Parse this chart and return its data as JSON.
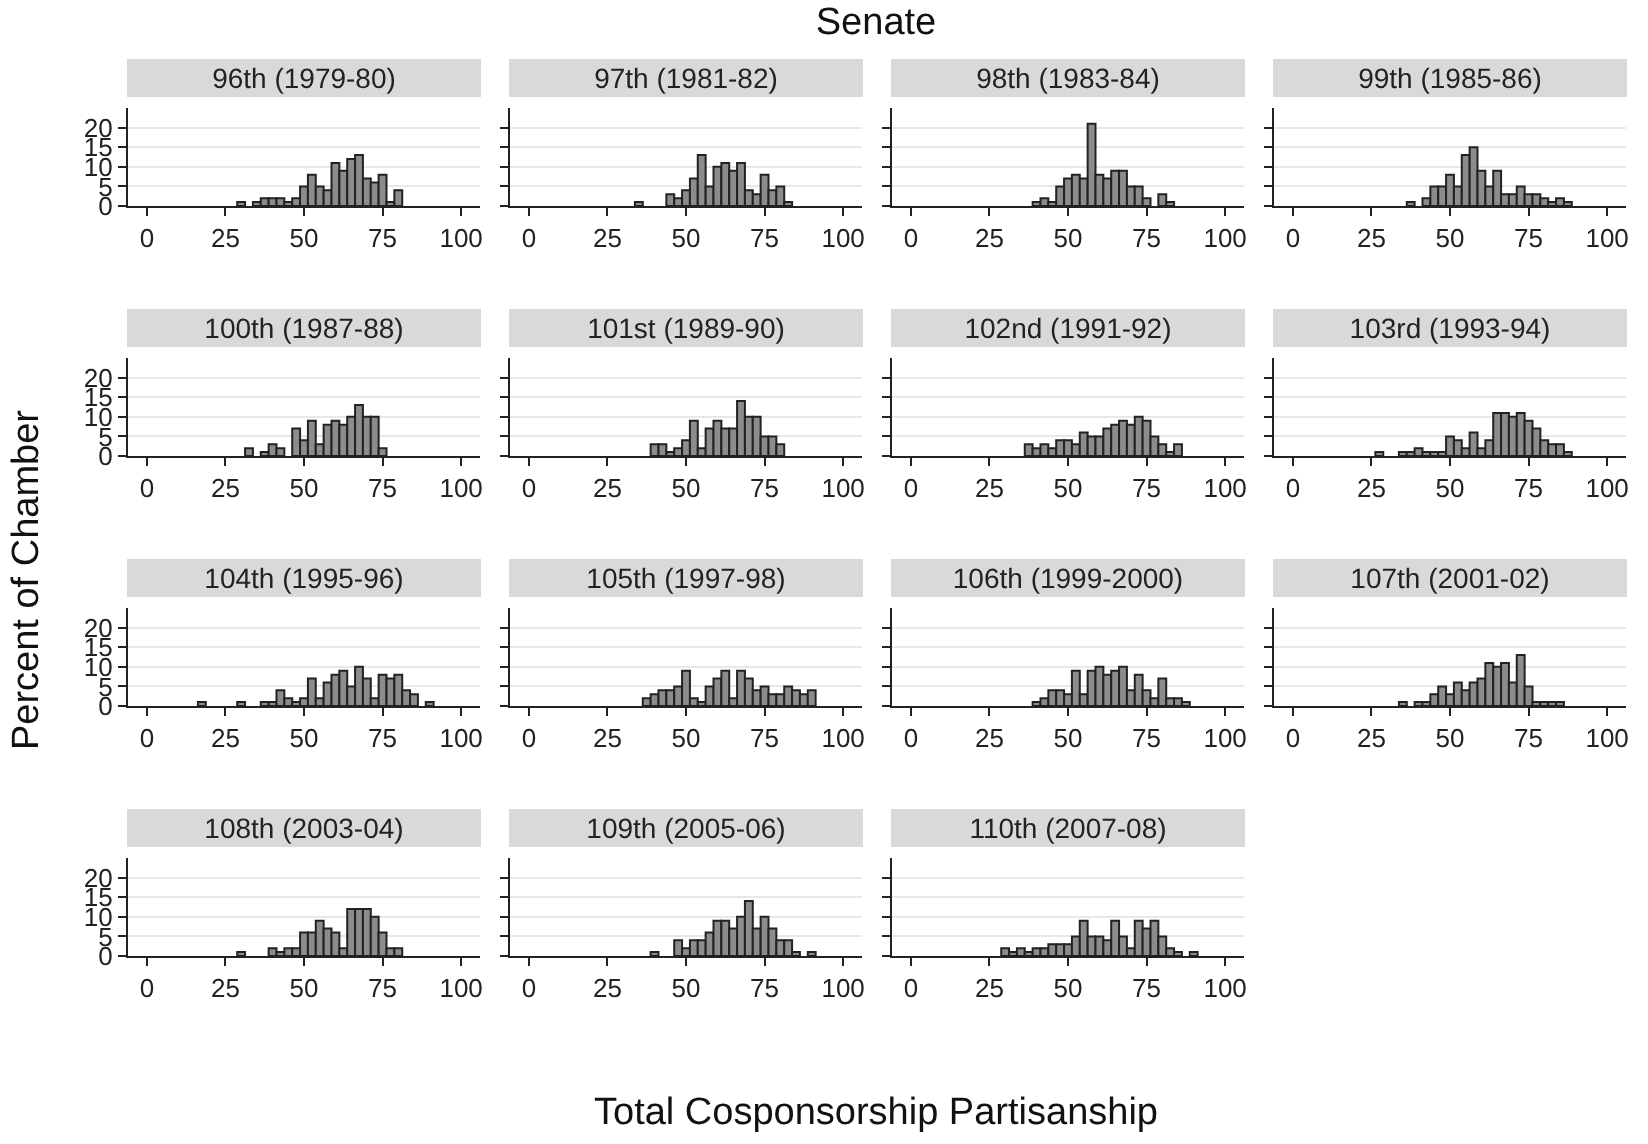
{
  "chart_data": [
    {
      "type": "histogram",
      "title": "96th (1979-80)",
      "bins": [
        16.25,
        18.75,
        21.25,
        23.75,
        26.25,
        28.75,
        31.25,
        33.75,
        36.25,
        38.75,
        41.25,
        43.75,
        46.25,
        48.75,
        51.25,
        53.75,
        56.25,
        58.75,
        61.25,
        63.75,
        66.25,
        68.75,
        71.25,
        73.75,
        76.25,
        78.75,
        81.25,
        83.75,
        86.25,
        88.75,
        91.25
      ],
      "values": [
        0,
        0,
        0,
        0,
        0,
        1,
        0,
        1,
        2,
        2,
        2,
        1,
        2,
        5,
        8,
        5,
        4,
        11,
        9,
        12,
        13,
        7,
        6,
        8,
        1,
        4,
        0,
        0,
        0,
        0
      ],
      "color": "#8c8c8c",
      "xlim": [
        -6,
        106
      ],
      "ylim": [
        0,
        25
      ],
      "xticks": [
        0,
        25,
        50,
        75,
        100
      ],
      "yticks": [
        0,
        5,
        10,
        15,
        20
      ],
      "grid": "y"
    },
    {
      "type": "histogram",
      "title": "97th (1981-82)",
      "bins": [
        16.25,
        18.75,
        21.25,
        23.75,
        26.25,
        28.75,
        31.25,
        33.75,
        36.25,
        38.75,
        41.25,
        43.75,
        46.25,
        48.75,
        51.25,
        53.75,
        56.25,
        58.75,
        61.25,
        63.75,
        66.25,
        68.75,
        71.25,
        73.75,
        76.25,
        78.75,
        81.25,
        83.75,
        86.25,
        88.75,
        91.25
      ],
      "values": [
        0,
        0,
        0,
        0,
        0,
        0,
        0,
        1,
        0,
        0,
        0,
        3,
        2,
        4,
        7,
        13,
        5,
        10,
        11,
        9,
        11,
        4,
        3,
        8,
        4,
        5,
        1,
        0,
        0,
        0
      ],
      "color": "#8c8c8c",
      "xlim": [
        -6,
        106
      ],
      "ylim": [
        0,
        25
      ],
      "xticks": [
        0,
        25,
        50,
        75,
        100
      ],
      "yticks": [
        0,
        5,
        10,
        15,
        20
      ],
      "grid": "y",
      "tick_labels": "x"
    },
    {
      "type": "histogram",
      "title": "98th (1983-84)",
      "bins": [
        16.25,
        18.75,
        21.25,
        23.75,
        26.25,
        28.75,
        31.25,
        33.75,
        36.25,
        38.75,
        41.25,
        43.75,
        46.25,
        48.75,
        51.25,
        53.75,
        56.25,
        58.75,
        61.25,
        63.75,
        66.25,
        68.75,
        71.25,
        73.75,
        76.25,
        78.75,
        81.25,
        83.75,
        86.25,
        88.75,
        91.25
      ],
      "values": [
        0,
        0,
        0,
        0,
        0,
        0,
        0,
        0,
        0,
        1,
        2,
        1,
        5,
        7,
        8,
        7,
        21,
        8,
        7,
        9,
        9,
        5,
        5,
        2,
        0,
        3,
        1,
        0,
        0,
        0
      ],
      "color": "#8c8c8c",
      "xlim": [
        -6,
        106
      ],
      "ylim": [
        0,
        25
      ],
      "xticks": [
        0,
        25,
        50,
        75,
        100
      ],
      "yticks": [
        0,
        5,
        10,
        15,
        20
      ],
      "grid": "y",
      "tick_labels": "x"
    },
    {
      "type": "histogram",
      "title": "99th (1985-86)",
      "bins": [
        16.25,
        18.75,
        21.25,
        23.75,
        26.25,
        28.75,
        31.25,
        33.75,
        36.25,
        38.75,
        41.25,
        43.75,
        46.25,
        48.75,
        51.25,
        53.75,
        56.25,
        58.75,
        61.25,
        63.75,
        66.25,
        68.75,
        71.25,
        73.75,
        76.25,
        78.75,
        81.25,
        83.75,
        86.25,
        88.75,
        91.25
      ],
      "values": [
        0,
        0,
        0,
        0,
        0,
        0,
        0,
        0,
        1,
        0,
        2,
        5,
        5,
        8,
        5,
        13,
        15,
        9,
        5,
        9,
        3,
        3,
        5,
        3,
        3,
        2,
        1,
        2,
        1,
        0
      ],
      "color": "#8c8c8c",
      "xlim": [
        -6,
        106
      ],
      "ylim": [
        0,
        25
      ],
      "xticks": [
        0,
        25,
        50,
        75,
        100
      ],
      "yticks": [
        0,
        5,
        10,
        15,
        20
      ],
      "grid": "y",
      "tick_labels": "x"
    },
    {
      "type": "histogram",
      "title": "100th (1987-88)",
      "bins": [
        16.25,
        18.75,
        21.25,
        23.75,
        26.25,
        28.75,
        31.25,
        33.75,
        36.25,
        38.75,
        41.25,
        43.75,
        46.25,
        48.75,
        51.25,
        53.75,
        56.25,
        58.75,
        61.25,
        63.75,
        66.25,
        68.75,
        71.25,
        73.75,
        76.25,
        78.75,
        81.25,
        83.75,
        86.25,
        88.75,
        91.25
      ],
      "values": [
        0,
        0,
        0,
        0,
        0,
        0,
        2,
        0,
        1,
        3,
        2,
        0,
        7,
        4,
        9,
        3,
        8,
        9,
        8,
        10,
        13,
        10,
        10,
        2,
        0,
        0,
        0,
        0,
        0,
        0
      ],
      "color": "#8c8c8c",
      "xlim": [
        -6,
        106
      ],
      "ylim": [
        0,
        25
      ],
      "xticks": [
        0,
        25,
        50,
        75,
        100
      ],
      "yticks": [
        0,
        5,
        10,
        15,
        20
      ],
      "grid": "y"
    },
    {
      "type": "histogram",
      "title": "101st (1989-90)",
      "bins": [
        16.25,
        18.75,
        21.25,
        23.75,
        26.25,
        28.75,
        31.25,
        33.75,
        36.25,
        38.75,
        41.25,
        43.75,
        46.25,
        48.75,
        51.25,
        53.75,
        56.25,
        58.75,
        61.25,
        63.75,
        66.25,
        68.75,
        71.25,
        73.75,
        76.25,
        78.75,
        81.25,
        83.75,
        86.25,
        88.75,
        91.25
      ],
      "values": [
        0,
        0,
        0,
        0,
        0,
        0,
        0,
        0,
        0,
        3,
        3,
        1,
        2,
        4,
        9,
        2,
        7,
        9,
        7,
        7,
        14,
        10,
        10,
        5,
        5,
        3,
        0,
        0,
        0,
        0
      ],
      "color": "#8c8c8c",
      "xlim": [
        -6,
        106
      ],
      "ylim": [
        0,
        25
      ],
      "xticks": [
        0,
        25,
        50,
        75,
        100
      ],
      "yticks": [
        0,
        5,
        10,
        15,
        20
      ],
      "grid": "y",
      "tick_labels": "x"
    },
    {
      "type": "histogram",
      "title": "102nd (1991-92)",
      "bins": [
        16.25,
        18.75,
        21.25,
        23.75,
        26.25,
        28.75,
        31.25,
        33.75,
        36.25,
        38.75,
        41.25,
        43.75,
        46.25,
        48.75,
        51.25,
        53.75,
        56.25,
        58.75,
        61.25,
        63.75,
        66.25,
        68.75,
        71.25,
        73.75,
        76.25,
        78.75,
        81.25,
        83.75,
        86.25,
        88.75,
        91.25
      ],
      "values": [
        0,
        0,
        0,
        0,
        0,
        0,
        0,
        0,
        3,
        2,
        3,
        2,
        4,
        4,
        3,
        6,
        5,
        5,
        7,
        8,
        9,
        8,
        10,
        9,
        5,
        3,
        1,
        3,
        0,
        0
      ],
      "color": "#8c8c8c",
      "xlim": [
        -6,
        106
      ],
      "ylim": [
        0,
        25
      ],
      "xticks": [
        0,
        25,
        50,
        75,
        100
      ],
      "yticks": [
        0,
        5,
        10,
        15,
        20
      ],
      "grid": "y",
      "tick_labels": "x"
    },
    {
      "type": "histogram",
      "title": "103rd (1993-94)",
      "bins": [
        16.25,
        18.75,
        21.25,
        23.75,
        26.25,
        28.75,
        31.25,
        33.75,
        36.25,
        38.75,
        41.25,
        43.75,
        46.25,
        48.75,
        51.25,
        53.75,
        56.25,
        58.75,
        61.25,
        63.75,
        66.25,
        68.75,
        71.25,
        73.75,
        76.25,
        78.75,
        81.25,
        83.75,
        86.25,
        88.75,
        91.25
      ],
      "values": [
        0,
        0,
        0,
        0,
        1,
        0,
        0,
        1,
        1,
        2,
        1,
        1,
        1,
        5,
        4,
        2,
        6,
        2,
        4,
        11,
        11,
        10,
        11,
        9,
        7,
        4,
        3,
        3,
        1,
        0
      ],
      "color": "#8c8c8c",
      "xlim": [
        -6,
        106
      ],
      "ylim": [
        0,
        25
      ],
      "xticks": [
        0,
        25,
        50,
        75,
        100
      ],
      "yticks": [
        0,
        5,
        10,
        15,
        20
      ],
      "grid": "y",
      "tick_labels": "x"
    },
    {
      "type": "histogram",
      "title": "104th (1995-96)",
      "bins": [
        16.25,
        18.75,
        21.25,
        23.75,
        26.25,
        28.75,
        31.25,
        33.75,
        36.25,
        38.75,
        41.25,
        43.75,
        46.25,
        48.75,
        51.25,
        53.75,
        56.25,
        58.75,
        61.25,
        63.75,
        66.25,
        68.75,
        71.25,
        73.75,
        76.25,
        78.75,
        81.25,
        83.75,
        86.25,
        88.75,
        91.25
      ],
      "values": [
        1,
        0,
        0,
        0,
        0,
        1,
        0,
        0,
        1,
        1,
        4,
        2,
        1,
        2,
        7,
        2,
        6,
        8,
        9,
        5,
        10,
        7,
        2,
        8,
        7,
        8,
        4,
        3,
        0,
        1
      ],
      "color": "#8c8c8c",
      "xlim": [
        -6,
        106
      ],
      "ylim": [
        0,
        25
      ],
      "xticks": [
        0,
        25,
        50,
        75,
        100
      ],
      "yticks": [
        0,
        5,
        10,
        15,
        20
      ],
      "grid": "y"
    },
    {
      "type": "histogram",
      "title": "105th (1997-98)",
      "bins": [
        16.25,
        18.75,
        21.25,
        23.75,
        26.25,
        28.75,
        31.25,
        33.75,
        36.25,
        38.75,
        41.25,
        43.75,
        46.25,
        48.75,
        51.25,
        53.75,
        56.25,
        58.75,
        61.25,
        63.75,
        66.25,
        68.75,
        71.25,
        73.75,
        76.25,
        78.75,
        81.25,
        83.75,
        86.25,
        88.75,
        91.25
      ],
      "values": [
        0,
        0,
        0,
        0,
        0,
        0,
        0,
        0,
        2,
        3,
        4,
        4,
        5,
        9,
        2,
        1,
        5,
        7,
        9,
        2,
        9,
        7,
        4,
        5,
        3,
        3,
        5,
        4,
        3,
        4
      ],
      "color": "#8c8c8c",
      "xlim": [
        -6,
        106
      ],
      "ylim": [
        0,
        25
      ],
      "xticks": [
        0,
        25,
        50,
        75,
        100
      ],
      "yticks": [
        0,
        5,
        10,
        15,
        20
      ],
      "grid": "y",
      "tick_labels": "x"
    },
    {
      "type": "histogram",
      "title": "106th (1999-2000)",
      "bins": [
        16.25,
        18.75,
        21.25,
        23.75,
        26.25,
        28.75,
        31.25,
        33.75,
        36.25,
        38.75,
        41.25,
        43.75,
        46.25,
        48.75,
        51.25,
        53.75,
        56.25,
        58.75,
        61.25,
        63.75,
        66.25,
        68.75,
        71.25,
        73.75,
        76.25,
        78.75,
        81.25,
        83.75,
        86.25,
        88.75,
        91.25
      ],
      "values": [
        0,
        0,
        0,
        0,
        0,
        0,
        0,
        0,
        0,
        1,
        2,
        4,
        4,
        3,
        9,
        3,
        9,
        10,
        8,
        9,
        10,
        4,
        8,
        4,
        2,
        7,
        2,
        2,
        1,
        0
      ],
      "color": "#8c8c8c",
      "xlim": [
        -6,
        106
      ],
      "ylim": [
        0,
        25
      ],
      "xticks": [
        0,
        25,
        50,
        75,
        100
      ],
      "yticks": [
        0,
        5,
        10,
        15,
        20
      ],
      "grid": "y",
      "tick_labels": "x"
    },
    {
      "type": "histogram",
      "title": "107th (2001-02)",
      "bins": [
        16.25,
        18.75,
        21.25,
        23.75,
        26.25,
        28.75,
        31.25,
        33.75,
        36.25,
        38.75,
        41.25,
        43.75,
        46.25,
        48.75,
        51.25,
        53.75,
        56.25,
        58.75,
        61.25,
        63.75,
        66.25,
        68.75,
        71.25,
        73.75,
        76.25,
        78.75,
        81.25,
        83.75,
        86.25,
        88.75,
        91.25
      ],
      "values": [
        0,
        0,
        0,
        0,
        0,
        0,
        0,
        1,
        0,
        1,
        1,
        3,
        5,
        3,
        6,
        4,
        6,
        7,
        11,
        10,
        11,
        6,
        13,
        5,
        1,
        1,
        1,
        1,
        0,
        0
      ],
      "color": "#8c8c8c",
      "xlim": [
        -6,
        106
      ],
      "ylim": [
        0,
        25
      ],
      "xticks": [
        0,
        25,
        50,
        75,
        100
      ],
      "yticks": [
        0,
        5,
        10,
        15,
        20
      ],
      "grid": "y",
      "tick_labels": "x"
    },
    {
      "type": "histogram",
      "title": "108th (2003-04)",
      "bins": [
        16.25,
        18.75,
        21.25,
        23.75,
        26.25,
        28.75,
        31.25,
        33.75,
        36.25,
        38.75,
        41.25,
        43.75,
        46.25,
        48.75,
        51.25,
        53.75,
        56.25,
        58.75,
        61.25,
        63.75,
        66.25,
        68.75,
        71.25,
        73.75,
        76.25,
        78.75,
        81.25,
        83.75,
        86.25,
        88.75,
        91.25
      ],
      "values": [
        0,
        0,
        0,
        0,
        0,
        1,
        0,
        0,
        0,
        2,
        1,
        2,
        2,
        6,
        6,
        9,
        7,
        6,
        2,
        12,
        12,
        12,
        10,
        6,
        2,
        2,
        0,
        0,
        0,
        0
      ],
      "color": "#8c8c8c",
      "xlim": [
        -6,
        106
      ],
      "ylim": [
        0,
        25
      ],
      "xticks": [
        0,
        25,
        50,
        75,
        100
      ],
      "yticks": [
        0,
        5,
        10,
        15,
        20
      ],
      "grid": "y"
    },
    {
      "type": "histogram",
      "title": "109th (2005-06)",
      "bins": [
        16.25,
        18.75,
        21.25,
        23.75,
        26.25,
        28.75,
        31.25,
        33.75,
        36.25,
        38.75,
        41.25,
        43.75,
        46.25,
        48.75,
        51.25,
        53.75,
        56.25,
        58.75,
        61.25,
        63.75,
        66.25,
        68.75,
        71.25,
        73.75,
        76.25,
        78.75,
        81.25,
        83.75,
        86.25,
        88.75,
        91.25
      ],
      "values": [
        0,
        0,
        0,
        0,
        0,
        0,
        0,
        0,
        0,
        1,
        0,
        0,
        4,
        2,
        4,
        4,
        6,
        9,
        9,
        7,
        10,
        14,
        7,
        10,
        7,
        4,
        4,
        1,
        0,
        1
      ],
      "color": "#8c8c8c",
      "xlim": [
        -6,
        106
      ],
      "ylim": [
        0,
        25
      ],
      "xticks": [
        0,
        25,
        50,
        75,
        100
      ],
      "yticks": [
        0,
        5,
        10,
        15,
        20
      ],
      "grid": "y",
      "tick_labels": "x"
    },
    {
      "type": "histogram",
      "title": "110th (2007-08)",
      "bins": [
        16.25,
        18.75,
        21.25,
        23.75,
        26.25,
        28.75,
        31.25,
        33.75,
        36.25,
        38.75,
        41.25,
        43.75,
        46.25,
        48.75,
        51.25,
        53.75,
        56.25,
        58.75,
        61.25,
        63.75,
        66.25,
        68.75,
        71.25,
        73.75,
        76.25,
        78.75,
        81.25,
        83.75,
        86.25,
        88.75,
        91.25
      ],
      "values": [
        0,
        0,
        0,
        0,
        0,
        2,
        1,
        2,
        1,
        2,
        2,
        3,
        3,
        3,
        5,
        9,
        5,
        5,
        4,
        9,
        5,
        2,
        9,
        7,
        9,
        5,
        2,
        1,
        0,
        1
      ],
      "color": "#8c8c8c",
      "xlim": [
        -6,
        106
      ],
      "ylim": [
        0,
        25
      ],
      "xticks": [
        0,
        25,
        50,
        75,
        100
      ],
      "yticks": [
        0,
        5,
        10,
        15,
        20
      ],
      "grid": "y",
      "tick_labels": "x"
    },
    {
      "type": "other",
      "title": "Senate",
      "xlabel": "Total Cosponsorship Partisanship",
      "ylabel": "Percent of Chamber"
    }
  ]
}
